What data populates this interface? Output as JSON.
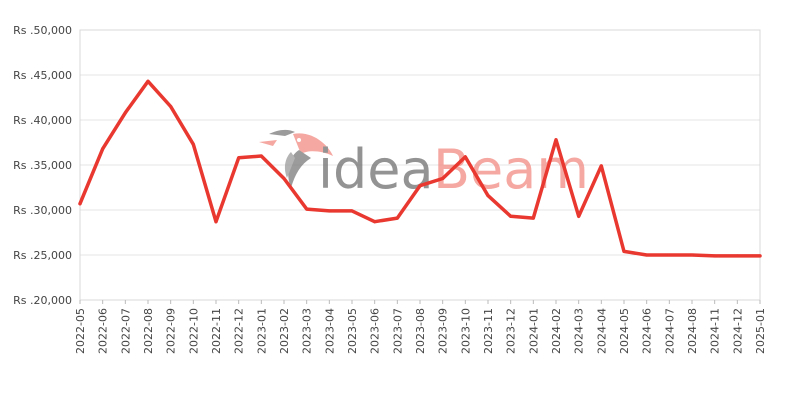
{
  "watermark": {
    "part1": "idea",
    "part2": "Beam",
    "color1": "#6f6f6f",
    "color2": "#f28b82"
  },
  "colors": {
    "line": "#e8382f",
    "grid": "#e6e6e6"
  },
  "chart_data": {
    "type": "line",
    "title": "",
    "xlabel": "",
    "ylabel": "",
    "ylim": [
      20000,
      50000
    ],
    "yticks": [
      {
        "value": 50000,
        "label": "Rs .50,000"
      },
      {
        "value": 45000,
        "label": "Rs .45,000"
      },
      {
        "value": 40000,
        "label": "Rs .40,000"
      },
      {
        "value": 35000,
        "label": "Rs .35,000"
      },
      {
        "value": 30000,
        "label": "Rs .30,000"
      },
      {
        "value": 25000,
        "label": "Rs .25,000"
      },
      {
        "value": 20000,
        "label": "Rs .20,000"
      }
    ],
    "categories": [
      "2022-05",
      "2022-06",
      "2022-07",
      "2022-08",
      "2022-09",
      "2022-10",
      "2022-11",
      "2022-12",
      "2023-01",
      "2023-02",
      "2023-03",
      "2023-04",
      "2023-05",
      "2023-06",
      "2023-07",
      "2023-08",
      "2023-09",
      "2023-10",
      "2023-11",
      "2023-12",
      "2024-01",
      "2024-02",
      "2024-03",
      "2024-04",
      "2024-05",
      "2024-06",
      "2024-07",
      "2024-08",
      "2024-11",
      "2024-12",
      "2025-01"
    ],
    "series": [
      {
        "values": [
          30700,
          36800,
          40800,
          44300,
          41500,
          37300,
          28700,
          35800,
          36000,
          33500,
          30100,
          29900,
          29900,
          28700,
          29100,
          32700,
          33500,
          35900,
          31600,
          29300,
          29100,
          37800,
          29300,
          34900,
          25400,
          25000,
          25000,
          25000,
          24900,
          24900,
          24900
        ]
      }
    ],
    "grid": true,
    "legend": "none"
  }
}
